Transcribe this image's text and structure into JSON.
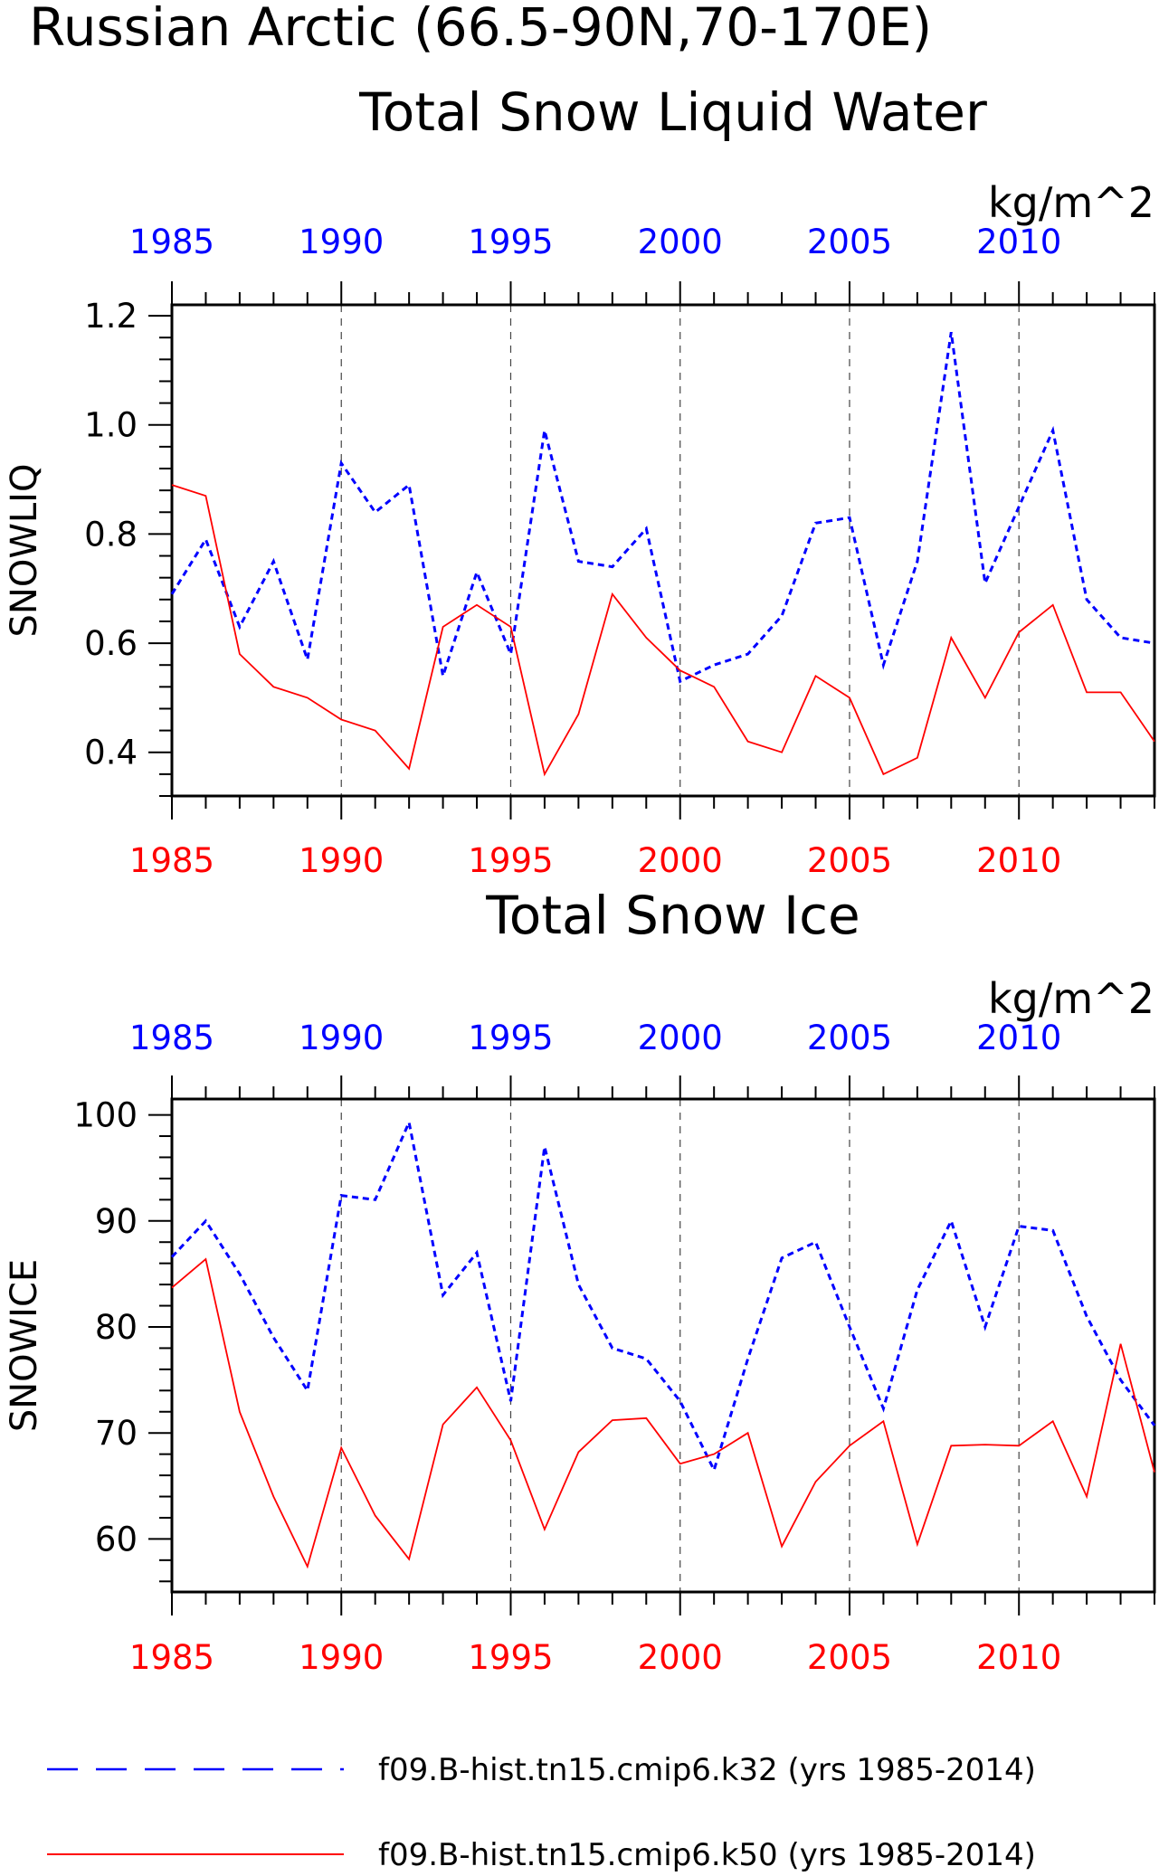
{
  "title": {
    "line1": "Russian Arctic (66.5-90N,70-170E)"
  },
  "colors": {
    "k32": "#0000ff",
    "k50": "#ff0000",
    "axis": "#000000",
    "grid": "#444444"
  },
  "legend": {
    "k32_label": "f09.B-hist.tn15.cmip6.k32 (yrs 1985-2014)",
    "k50_label": "f09.B-hist.tn15.cmip6.k50 (yrs 1985-2014)"
  },
  "chart_data": [
    {
      "type": "line",
      "title": "Total Snow Liquid Water",
      "ylabel": "SNOWLIQ",
      "unit": "kg/m^2",
      "xlim": [
        1985,
        2014
      ],
      "ylim": [
        0.32,
        1.22
      ],
      "yticks": [
        "0.4",
        "0.6",
        "0.8",
        "1.0",
        "1.2"
      ],
      "xticks": [
        "1985",
        "1990",
        "1995",
        "2000",
        "2005",
        "2010"
      ],
      "grid": "vertical dashed at 1990, 1995, 2000, 2005, 2010",
      "x": [
        1985,
        1986,
        1987,
        1988,
        1989,
        1990,
        1991,
        1992,
        1993,
        1994,
        1995,
        1996,
        1997,
        1998,
        1999,
        2000,
        2001,
        2002,
        2003,
        2004,
        2005,
        2006,
        2007,
        2008,
        2009,
        2010,
        2011,
        2012,
        2013,
        2014
      ],
      "series": [
        {
          "name": "f09.B-hist.tn15.cmip6.k32 (yrs 1985-2014)",
          "style": "dashed",
          "values": [
            0.69,
            0.79,
            0.63,
            0.75,
            0.57,
            0.93,
            0.84,
            0.89,
            0.54,
            0.73,
            0.58,
            0.99,
            0.75,
            0.74,
            0.81,
            0.53,
            0.56,
            0.58,
            0.65,
            0.82,
            0.83,
            0.56,
            0.75,
            1.17,
            0.71,
            0.85,
            0.99,
            0.68,
            0.61,
            0.6
          ]
        },
        {
          "name": "f09.B-hist.tn15.cmip6.k50 (yrs 1985-2014)",
          "style": "solid",
          "values": [
            0.89,
            0.87,
            0.58,
            0.52,
            0.5,
            0.46,
            0.44,
            0.37,
            0.63,
            0.67,
            0.63,
            0.36,
            0.47,
            0.69,
            0.61,
            0.55,
            0.52,
            0.42,
            0.4,
            0.54,
            0.5,
            0.36,
            0.39,
            0.61,
            0.5,
            0.62,
            0.67,
            0.51,
            0.51,
            0.42
          ]
        }
      ]
    },
    {
      "type": "line",
      "title": "Total Snow Ice",
      "ylabel": "SNOWICE",
      "unit": "kg/m^2",
      "xlim": [
        1985,
        2014
      ],
      "ylim": [
        55,
        101.5
      ],
      "yticks": [
        "60",
        "70",
        "80",
        "90",
        "100"
      ],
      "xticks": [
        "1985",
        "1990",
        "1995",
        "2000",
        "2005",
        "2010"
      ],
      "grid": "vertical dashed at 1990, 1995, 2000, 2005, 2010",
      "x": [
        1985,
        1986,
        1987,
        1988,
        1989,
        1990,
        1991,
        1992,
        1993,
        1994,
        1995,
        1996,
        1997,
        1998,
        1999,
        2000,
        2001,
        2002,
        2003,
        2004,
        2005,
        2006,
        2007,
        2008,
        2009,
        2010,
        2011,
        2012,
        2013,
        2014
      ],
      "series": [
        {
          "name": "f09.B-hist.tn15.cmip6.k32 (yrs 1985-2014)",
          "style": "dashed",
          "values": [
            86.6,
            90.0,
            85.0,
            79.0,
            74.0,
            92.4,
            92.0,
            99.3,
            83.0,
            87.0,
            73.0,
            97.0,
            84.0,
            78.0,
            77.0,
            73.0,
            66.5,
            77.0,
            86.5,
            88.0,
            80.0,
            72.3,
            83.5,
            90.0,
            80.0,
            89.5,
            89.1,
            81.0,
            75.0,
            70.7
          ]
        },
        {
          "name": "f09.B-hist.tn15.cmip6.k50 (yrs 1985-2014)",
          "style": "solid",
          "values": [
            83.7,
            86.4,
            72.0,
            64.0,
            57.4,
            68.6,
            62.2,
            58.1,
            70.8,
            74.3,
            69.3,
            60.9,
            68.2,
            71.2,
            71.4,
            67.1,
            68.0,
            70.0,
            59.3,
            65.4,
            68.8,
            71.1,
            59.5,
            68.8,
            68.9,
            68.8,
            71.1,
            64.0,
            78.4,
            66.3
          ]
        }
      ]
    }
  ]
}
